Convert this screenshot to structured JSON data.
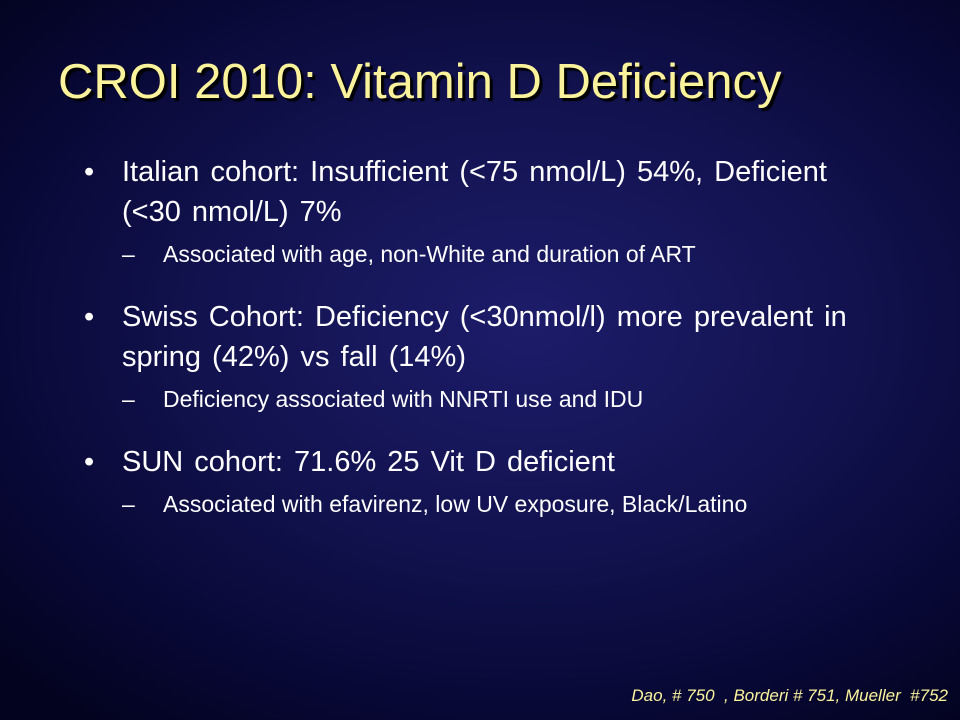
{
  "slide": {
    "title": "CROI 2010: Vitamin D Deficiency",
    "bullet_marker": "•",
    "sub_marker": "–",
    "bullets": [
      {
        "text": "Italian cohort: Insufficient (<75 nmol/L) 54%, Deficient  (<30 nmol/L) 7%",
        "sub": "Associated with age, non-White and duration of ART"
      },
      {
        "text": "Swiss Cohort: Deficiency (<30nmol/l) more prevalent in spring (42%) vs fall (14%)",
        "sub": "Deficiency associated with NNRTI use and IDU"
      },
      {
        "text": "SUN cohort: 71.6% 25 Vit D deficient",
        "sub": "Associated with efavirenz, low UV exposure, Black/Latino"
      }
    ],
    "citation": "Dao, # 750  , Borderi # 751, Mueller  #752"
  },
  "colors": {
    "title": "#fbf39b",
    "body_text": "#ffffff",
    "background_center": "#1c1c6a",
    "background_edge": "#03031f"
  }
}
